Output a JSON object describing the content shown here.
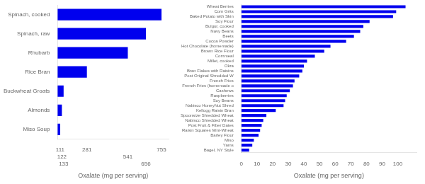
{
  "chart_data": [
    {
      "type": "bar",
      "orientation": "horizontal",
      "categories": [
        "Miso Soup",
        "Almonds",
        "Buckwheat Groats",
        "Rice Bran",
        "Rhubarb",
        "Spinach, raw",
        "Spinach, cooked"
      ],
      "values": [
        111,
        122,
        133,
        281,
        541,
        656,
        755
      ],
      "color": "#0000ee",
      "xlabel": "Oxalate (mg per serving)",
      "xlim": [
        95,
        800
      ],
      "xticks": [
        111,
        122,
        133,
        281,
        541,
        656,
        755
      ],
      "grid": false
    },
    {
      "type": "bar",
      "orientation": "horizontal",
      "categories": [
        "Bagel, NY Style",
        "Yams",
        "Miso",
        "Barley Flour",
        "Raisin Squares Mini-Wheat",
        "Post Fruit & Fiber Dates",
        "Nabisco Shredded Wheat",
        "Spoonsize Shredded Wheat",
        "Kellogg Raisin Bran",
        "Nabisco HoneyNut Shred",
        "Soy Beans",
        "Raspberries",
        "Cashews",
        "French Fries (homemade o",
        "French Fries",
        "Post Original Shredded W",
        "Bran Flakes with Raisins",
        "Okra",
        "Millet, cooked",
        "Cornmeal",
        "Brown Rice Flour",
        "Hot Chocolate (homemade)",
        "Cocoa Powder",
        "Beets",
        "Navy Beans",
        "Bulgur, cooked",
        "Soy Flour",
        "Baked Potato with Skin",
        "Corn Grits",
        "Wheat Berries"
      ],
      "values": [
        5,
        7,
        8,
        11,
        12,
        13,
        14,
        16,
        22,
        27,
        28,
        29,
        31,
        33,
        34,
        37,
        39,
        40,
        42,
        47,
        53,
        57,
        67,
        72,
        76,
        78,
        82,
        97,
        99,
        105
      ],
      "color": "#0000ee",
      "xlabel": "Oxalate (mg per serving)",
      "xlim": [
        0,
        112
      ],
      "xticks": [
        0,
        10,
        20,
        30,
        40,
        50,
        60,
        70,
        80,
        90,
        100
      ],
      "grid": false
    }
  ]
}
